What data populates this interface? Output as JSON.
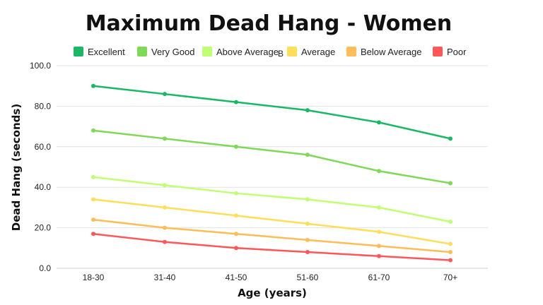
{
  "chart_data": {
    "type": "line",
    "title": "Maximum Dead Hang - Women",
    "xlabel": "Age (years)",
    "ylabel": "Dead Hang (seconds)",
    "categories": [
      "18-30",
      "31-40",
      "41-50",
      "51-60",
      "61-70",
      "70+"
    ],
    "ylim": [
      0,
      100
    ],
    "yticks": [
      "0.0",
      "20.0",
      "40.0",
      "60.0",
      "80.0",
      "100.0"
    ],
    "grid": true,
    "legend_position": "top",
    "legend_stray_mark": "B",
    "series": [
      {
        "name": "Excellent",
        "color": "#1ab865",
        "values": [
          90,
          86,
          82,
          78,
          72,
          64
        ]
      },
      {
        "name": "Very Good",
        "color": "#7ed957",
        "values": [
          68,
          64,
          60,
          56,
          48,
          42
        ]
      },
      {
        "name": "Above Average",
        "color": "#c1ff72",
        "values": [
          45,
          41,
          37,
          34,
          30,
          23
        ]
      },
      {
        "name": "Average",
        "color": "#ffde59",
        "values": [
          34,
          30,
          26,
          22,
          18,
          12
        ]
      },
      {
        "name": "Below Average",
        "color": "#ffbd59",
        "values": [
          24,
          20,
          17,
          14,
          11,
          8
        ]
      },
      {
        "name": "Poor",
        "color": "#ff5757",
        "values": [
          17,
          13,
          10,
          8,
          6,
          4
        ]
      }
    ]
  }
}
